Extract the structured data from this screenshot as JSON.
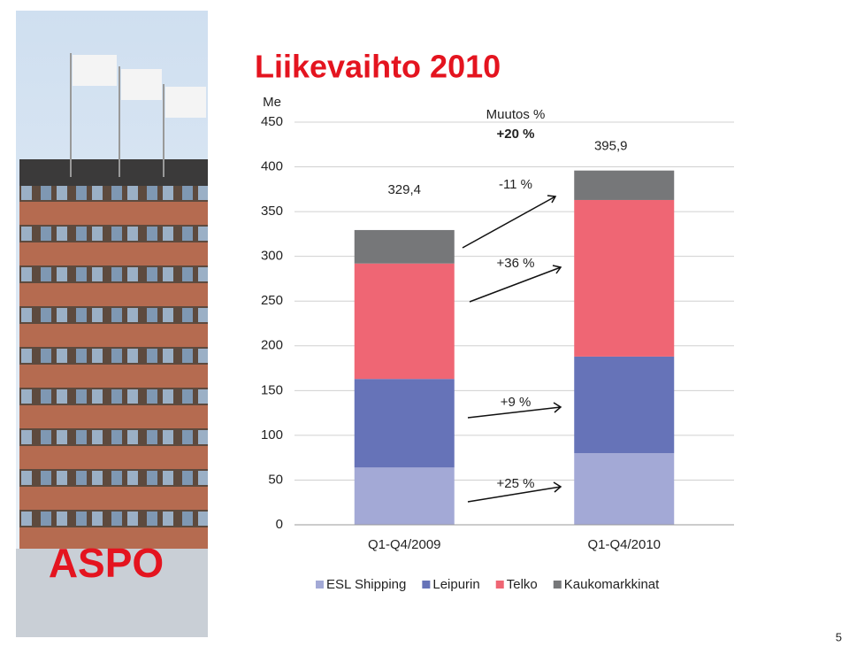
{
  "chart_data": {
    "type": "bar",
    "stacked": true,
    "title": "Liikevaihto 2010",
    "y_label": "Me",
    "categories": [
      "Q1-Q4/2009",
      "Q1-Q4/2010"
    ],
    "series": [
      {
        "name": "ESL Shipping",
        "color": "#a3a9d6",
        "values": [
          64,
          80
        ]
      },
      {
        "name": "Leipurin",
        "color": "#6673b8",
        "values": [
          99,
          108
        ]
      },
      {
        "name": "Telko",
        "color": "#ef6674",
        "values": [
          129,
          175
        ]
      },
      {
        "name": "Kaukomarkkinat",
        "color": "#767779",
        "values": [
          37.4,
          32.9
        ]
      }
    ],
    "totals": [
      329.4,
      395.9
    ],
    "total_labels": [
      "329,4",
      "395,9"
    ],
    "annotations": [
      "Muutos %",
      "+20 %",
      "-11 %",
      "+36 %",
      "+9 %",
      "+25 %"
    ],
    "ylim": [
      0,
      450
    ],
    "yticks": [
      0,
      50,
      100,
      150,
      200,
      250,
      300,
      350,
      400,
      450
    ],
    "grid": true,
    "legend": "bottom",
    "logo": "ASPO",
    "page_number": "5"
  }
}
